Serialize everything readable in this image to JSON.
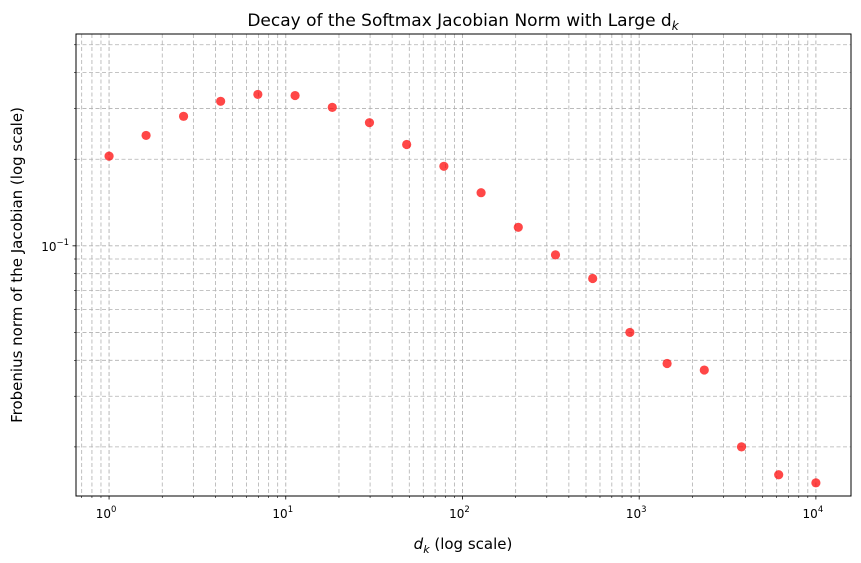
{
  "chart_data": {
    "type": "scatter",
    "title": "Decay of the Softmax Jacobian Norm with Large d",
    "title_subscript": "k",
    "xlabel": "d",
    "xlabel_subscript": "k",
    "xlabel_suffix": "(log scale)",
    "ylabel": "Frobenius norm of the Jacobian (log scale)",
    "xscale": "log",
    "yscale": "log",
    "xlim": [
      0.65,
      15800
    ],
    "ylim": [
      0.0135,
      0.545
    ],
    "grid": true,
    "marker_color": "#ff0000",
    "x_ticks": [
      {
        "base": "10",
        "exp": "0",
        "value": 1
      },
      {
        "base": "10",
        "exp": "1",
        "value": 10
      },
      {
        "base": "10",
        "exp": "2",
        "value": 100
      },
      {
        "base": "10",
        "exp": "3",
        "value": 1000
      },
      {
        "base": "10",
        "exp": "4",
        "value": 10000
      }
    ],
    "y_ticks": [
      {
        "base": "10",
        "exp": "−1",
        "value": 0.1
      }
    ],
    "x": [
      1.0,
      1.62,
      2.64,
      4.28,
      6.95,
      11.29,
      18.33,
      29.76,
      48.33,
      78.48,
      127.43,
      206.91,
      335.98,
      545.56,
      885.87,
      1438.45,
      2335.72,
      3792.69,
      6158.48,
      10000.0
    ],
    "y": [
      0.205,
      0.242,
      0.282,
      0.318,
      0.336,
      0.333,
      0.303,
      0.268,
      0.225,
      0.189,
      0.153,
      0.116,
      0.093,
      0.077,
      0.05,
      0.039,
      0.037,
      0.02,
      0.016,
      0.015
    ]
  }
}
